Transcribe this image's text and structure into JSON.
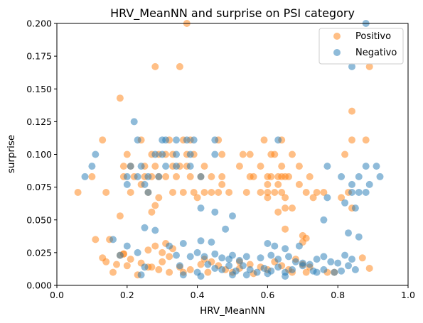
{
  "chart_data": {
    "type": "scatter",
    "title": "HRV_MeanNN and surprise on PSI category",
    "xlabel": "HRV_MeanNN",
    "ylabel": "surprise",
    "xlim": [
      0.0,
      1.0
    ],
    "ylim": [
      0.0,
      0.2
    ],
    "x_ticks": [
      "0.0",
      "0.2",
      "0.4",
      "0.6",
      "0.8",
      "1.0"
    ],
    "y_ticks": [
      "0.000",
      "0.025",
      "0.050",
      "0.075",
      "0.100",
      "0.125",
      "0.150",
      "0.175",
      "0.200"
    ],
    "grid": false,
    "legend_position": "top-right",
    "series": [
      {
        "name": "Positivo",
        "color": "#ff7f0e",
        "points": [
          [
            0.37,
            0.2
          ],
          [
            0.28,
            0.167
          ],
          [
            0.35,
            0.167
          ],
          [
            0.84,
            0.133
          ],
          [
            0.18,
            0.143
          ],
          [
            0.89,
            0.167
          ],
          [
            0.13,
            0.111
          ],
          [
            0.24,
            0.111
          ],
          [
            0.32,
            0.111
          ],
          [
            0.36,
            0.111
          ],
          [
            0.38,
            0.111
          ],
          [
            0.46,
            0.111
          ],
          [
            0.59,
            0.111
          ],
          [
            0.64,
            0.111
          ],
          [
            0.84,
            0.111
          ],
          [
            0.88,
            0.111
          ],
          [
            0.2,
            0.1
          ],
          [
            0.27,
            0.1
          ],
          [
            0.29,
            0.1
          ],
          [
            0.31,
            0.1
          ],
          [
            0.33,
            0.1
          ],
          [
            0.37,
            0.1
          ],
          [
            0.39,
            0.1
          ],
          [
            0.47,
            0.1
          ],
          [
            0.53,
            0.1
          ],
          [
            0.55,
            0.1
          ],
          [
            0.61,
            0.1
          ],
          [
            0.62,
            0.1
          ],
          [
            0.67,
            0.1
          ],
          [
            0.82,
            0.1
          ],
          [
            0.19,
            0.091
          ],
          [
            0.21,
            0.091
          ],
          [
            0.25,
            0.091
          ],
          [
            0.28,
            0.091
          ],
          [
            0.33,
            0.091
          ],
          [
            0.35,
            0.091
          ],
          [
            0.37,
            0.091
          ],
          [
            0.42,
            0.091
          ],
          [
            0.52,
            0.091
          ],
          [
            0.58,
            0.091
          ],
          [
            0.64,
            0.091
          ],
          [
            0.69,
            0.091
          ],
          [
            0.1,
            0.083
          ],
          [
            0.19,
            0.083
          ],
          [
            0.22,
            0.083
          ],
          [
            0.25,
            0.083
          ],
          [
            0.27,
            0.083
          ],
          [
            0.29,
            0.083
          ],
          [
            0.31,
            0.083
          ],
          [
            0.34,
            0.083
          ],
          [
            0.38,
            0.083
          ],
          [
            0.41,
            0.083
          ],
          [
            0.44,
            0.083
          ],
          [
            0.47,
            0.083
          ],
          [
            0.55,
            0.083
          ],
          [
            0.56,
            0.083
          ],
          [
            0.6,
            0.083
          ],
          [
            0.61,
            0.083
          ],
          [
            0.63,
            0.083
          ],
          [
            0.64,
            0.083
          ],
          [
            0.65,
            0.083
          ],
          [
            0.66,
            0.083
          ],
          [
            0.72,
            0.083
          ],
          [
            0.06,
            0.071
          ],
          [
            0.14,
            0.071
          ],
          [
            0.21,
            0.071
          ],
          [
            0.26,
            0.071
          ],
          [
            0.33,
            0.071
          ],
          [
            0.36,
            0.071
          ],
          [
            0.39,
            0.071
          ],
          [
            0.42,
            0.071
          ],
          [
            0.44,
            0.071
          ],
          [
            0.46,
            0.071
          ],
          [
            0.49,
            0.071
          ],
          [
            0.54,
            0.071
          ],
          [
            0.58,
            0.071
          ],
          [
            0.6,
            0.071
          ],
          [
            0.62,
            0.071
          ],
          [
            0.64,
            0.071
          ],
          [
            0.71,
            0.071
          ],
          [
            0.74,
            0.071
          ],
          [
            0.76,
            0.071
          ],
          [
            0.83,
            0.071
          ],
          [
            0.24,
            0.077
          ],
          [
            0.47,
            0.077
          ],
          [
            0.6,
            0.077
          ],
          [
            0.63,
            0.077
          ],
          [
            0.69,
            0.077
          ],
          [
            0.29,
            0.067
          ],
          [
            0.4,
            0.067
          ],
          [
            0.6,
            0.067
          ],
          [
            0.65,
            0.067
          ],
          [
            0.73,
            0.067
          ],
          [
            0.81,
            0.067
          ],
          [
            0.28,
            0.061
          ],
          [
            0.65,
            0.059
          ],
          [
            0.67,
            0.059
          ],
          [
            0.84,
            0.059
          ],
          [
            0.27,
            0.056
          ],
          [
            0.18,
            0.053
          ],
          [
            0.63,
            0.056
          ],
          [
            0.7,
            0.038
          ],
          [
            0.71,
            0.036
          ],
          [
            0.7,
            0.033
          ],
          [
            0.65,
            0.043
          ],
          [
            0.11,
            0.035
          ],
          [
            0.15,
            0.035
          ],
          [
            0.28,
            0.03
          ],
          [
            0.31,
            0.032
          ],
          [
            0.33,
            0.028
          ],
          [
            0.3,
            0.025
          ],
          [
            0.26,
            0.027
          ],
          [
            0.19,
            0.024
          ],
          [
            0.18,
            0.023
          ],
          [
            0.21,
            0.02
          ],
          [
            0.14,
            0.018
          ],
          [
            0.13,
            0.021
          ],
          [
            0.17,
            0.016
          ],
          [
            0.2,
            0.015
          ],
          [
            0.24,
            0.017
          ],
          [
            0.27,
            0.014
          ],
          [
            0.29,
            0.012
          ],
          [
            0.3,
            0.018
          ],
          [
            0.35,
            0.014
          ],
          [
            0.36,
            0.01
          ],
          [
            0.38,
            0.012
          ],
          [
            0.41,
            0.016
          ],
          [
            0.42,
            0.02
          ],
          [
            0.44,
            0.018
          ],
          [
            0.46,
            0.015
          ],
          [
            0.48,
            0.012
          ],
          [
            0.5,
            0.01
          ],
          [
            0.52,
            0.013
          ],
          [
            0.55,
            0.016
          ],
          [
            0.58,
            0.014
          ],
          [
            0.6,
            0.012
          ],
          [
            0.62,
            0.018
          ],
          [
            0.64,
            0.015
          ],
          [
            0.66,
            0.012
          ],
          [
            0.68,
            0.02
          ],
          [
            0.7,
            0.016
          ],
          [
            0.72,
            0.014
          ],
          [
            0.16,
            0.01
          ],
          [
            0.23,
            0.008
          ],
          [
            0.26,
            0.014
          ],
          [
            0.32,
            0.01
          ],
          [
            0.43,
            0.01
          ],
          [
            0.56,
            0.009
          ],
          [
            0.67,
            0.01
          ],
          [
            0.71,
            0.01
          ],
          [
            0.77,
            0.01
          ],
          [
            0.79,
            0.01
          ],
          [
            0.87,
            0.021
          ],
          [
            0.89,
            0.013
          ],
          [
            0.19,
            0.024
          ],
          [
            0.32,
            0.022
          ],
          [
            0.52,
            0.018
          ]
        ]
      },
      {
        "name": "Negativo",
        "color": "#1f77b4",
        "points": [
          [
            0.88,
            0.2
          ],
          [
            0.84,
            0.167
          ],
          [
            0.22,
            0.125
          ],
          [
            0.23,
            0.111
          ],
          [
            0.3,
            0.111
          ],
          [
            0.31,
            0.111
          ],
          [
            0.34,
            0.111
          ],
          [
            0.37,
            0.111
          ],
          [
            0.39,
            0.111
          ],
          [
            0.45,
            0.111
          ],
          [
            0.63,
            0.111
          ],
          [
            0.11,
            0.1
          ],
          [
            0.28,
            0.1
          ],
          [
            0.3,
            0.1
          ],
          [
            0.34,
            0.1
          ],
          [
            0.38,
            0.1
          ],
          [
            0.45,
            0.1
          ],
          [
            0.1,
            0.091
          ],
          [
            0.21,
            0.091
          ],
          [
            0.24,
            0.091
          ],
          [
            0.31,
            0.091
          ],
          [
            0.34,
            0.091
          ],
          [
            0.38,
            0.091
          ],
          [
            0.77,
            0.091
          ],
          [
            0.88,
            0.091
          ],
          [
            0.91,
            0.091
          ],
          [
            0.08,
            0.083
          ],
          [
            0.2,
            0.083
          ],
          [
            0.23,
            0.083
          ],
          [
            0.26,
            0.083
          ],
          [
            0.29,
            0.083
          ],
          [
            0.41,
            0.083
          ],
          [
            0.81,
            0.083
          ],
          [
            0.86,
            0.083
          ],
          [
            0.92,
            0.083
          ],
          [
            0.2,
            0.077
          ],
          [
            0.25,
            0.077
          ],
          [
            0.84,
            0.077
          ],
          [
            0.89,
            0.077
          ],
          [
            0.84,
            0.071
          ],
          [
            0.86,
            0.071
          ],
          [
            0.88,
            0.071
          ],
          [
            0.26,
            0.071
          ],
          [
            0.77,
            0.067
          ],
          [
            0.82,
            0.063
          ],
          [
            0.85,
            0.059
          ],
          [
            0.41,
            0.059
          ],
          [
            0.45,
            0.056
          ],
          [
            0.5,
            0.053
          ],
          [
            0.76,
            0.05
          ],
          [
            0.48,
            0.043
          ],
          [
            0.83,
            0.04
          ],
          [
            0.86,
            0.037
          ],
          [
            0.25,
            0.044
          ],
          [
            0.28,
            0.042
          ],
          [
            0.16,
            0.035
          ],
          [
            0.41,
            0.034
          ],
          [
            0.44,
            0.033
          ],
          [
            0.36,
            0.032
          ],
          [
            0.32,
            0.03
          ],
          [
            0.2,
            0.03
          ],
          [
            0.6,
            0.032
          ],
          [
            0.62,
            0.03
          ],
          [
            0.65,
            0.028
          ],
          [
            0.69,
            0.03
          ],
          [
            0.34,
            0.023
          ],
          [
            0.38,
            0.022
          ],
          [
            0.4,
            0.025
          ],
          [
            0.42,
            0.022
          ],
          [
            0.45,
            0.024
          ],
          [
            0.47,
            0.021
          ],
          [
            0.49,
            0.02
          ],
          [
            0.5,
            0.023
          ],
          [
            0.52,
            0.019
          ],
          [
            0.54,
            0.022
          ],
          [
            0.58,
            0.021
          ],
          [
            0.61,
            0.023
          ],
          [
            0.63,
            0.02
          ],
          [
            0.66,
            0.022
          ],
          [
            0.68,
            0.018
          ],
          [
            0.7,
            0.017
          ],
          [
            0.72,
            0.016
          ],
          [
            0.74,
            0.02
          ],
          [
            0.76,
            0.022
          ],
          [
            0.78,
            0.018
          ],
          [
            0.8,
            0.017
          ],
          [
            0.82,
            0.023
          ],
          [
            0.84,
            0.02
          ],
          [
            0.18,
            0.023
          ],
          [
            0.23,
            0.025
          ],
          [
            0.25,
            0.014
          ],
          [
            0.35,
            0.015
          ],
          [
            0.4,
            0.01
          ],
          [
            0.43,
            0.016
          ],
          [
            0.45,
            0.013
          ],
          [
            0.47,
            0.012
          ],
          [
            0.49,
            0.015
          ],
          [
            0.51,
            0.011
          ],
          [
            0.53,
            0.015
          ],
          [
            0.55,
            0.012
          ],
          [
            0.57,
            0.01
          ],
          [
            0.59,
            0.013
          ],
          [
            0.61,
            0.011
          ],
          [
            0.63,
            0.014
          ],
          [
            0.65,
            0.01
          ],
          [
            0.67,
            0.012
          ],
          [
            0.7,
            0.015
          ],
          [
            0.73,
            0.011
          ],
          [
            0.76,
            0.012
          ],
          [
            0.79,
            0.01
          ],
          [
            0.81,
            0.011
          ],
          [
            0.83,
            0.015
          ],
          [
            0.85,
            0.012
          ],
          [
            0.24,
            0.008
          ],
          [
            0.36,
            0.008
          ],
          [
            0.41,
            0.007
          ],
          [
            0.5,
            0.008
          ],
          [
            0.54,
            0.008
          ],
          [
            0.6,
            0.009
          ],
          [
            0.65,
            0.007
          ],
          [
            0.74,
            0.01
          ]
        ]
      }
    ]
  }
}
